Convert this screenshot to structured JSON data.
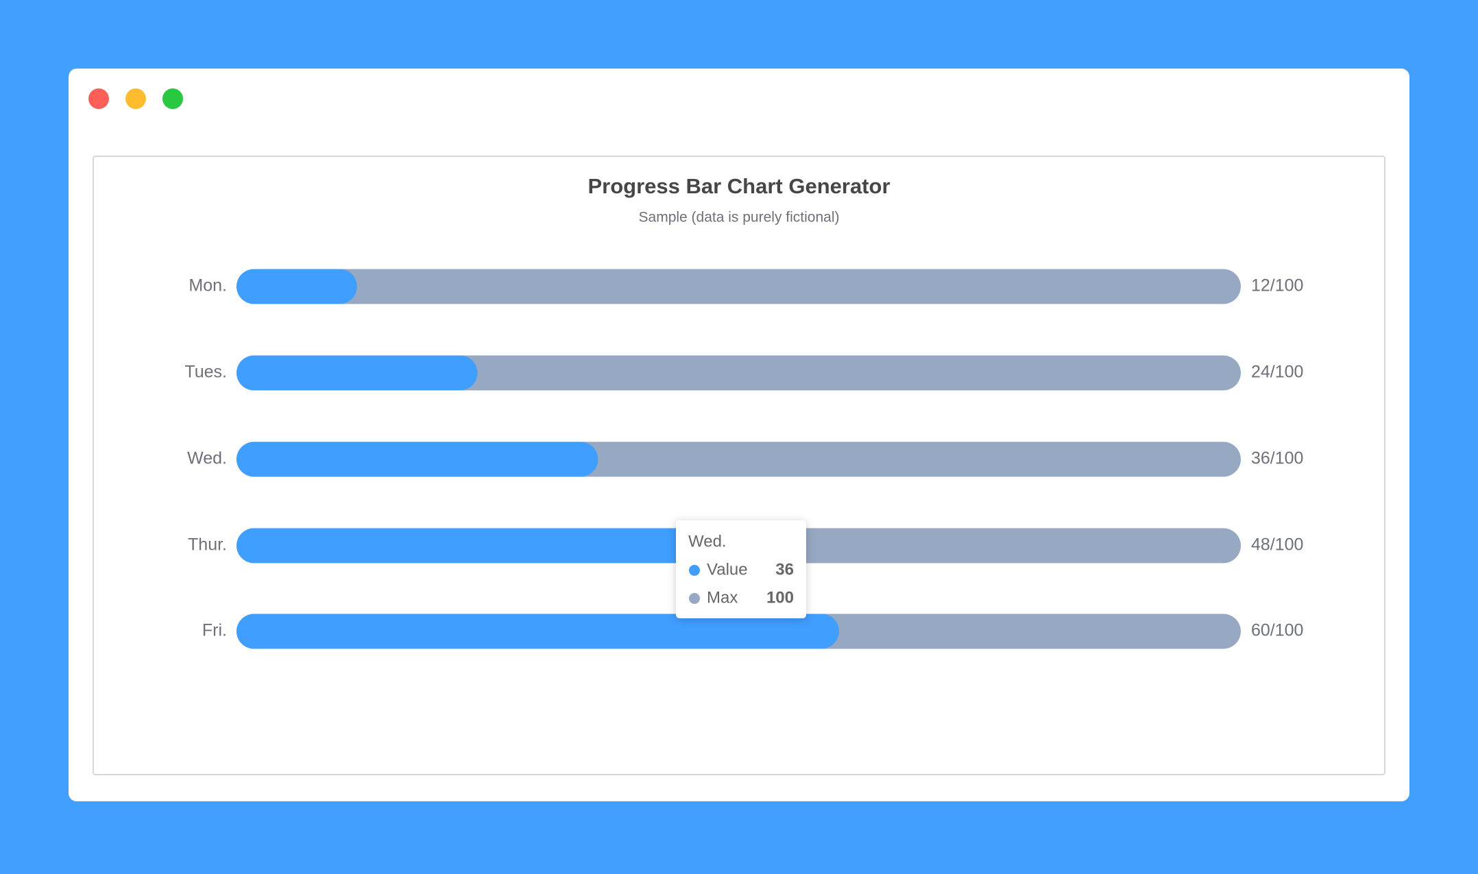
{
  "chart_data": {
    "type": "progress",
    "title": "Progress Bar Chart Generator",
    "subtitle": "Sample (data is purely fictional)",
    "categories": [
      "Mon.",
      "Tues.",
      "Wed.",
      "Thur.",
      "Fri."
    ],
    "series": [
      {
        "name": "Value",
        "color": "#409eff",
        "values": [
          12,
          24,
          36,
          48,
          60
        ]
      },
      {
        "name": "Max",
        "color": "#97a9c2",
        "values": [
          100,
          100,
          100,
          100,
          100
        ]
      }
    ],
    "value_labels": [
      "12/100",
      "24/100",
      "36/100",
      "48/100",
      "60/100"
    ],
    "xlim": [
      0,
      100
    ],
    "tooltip_index": 2
  }
}
